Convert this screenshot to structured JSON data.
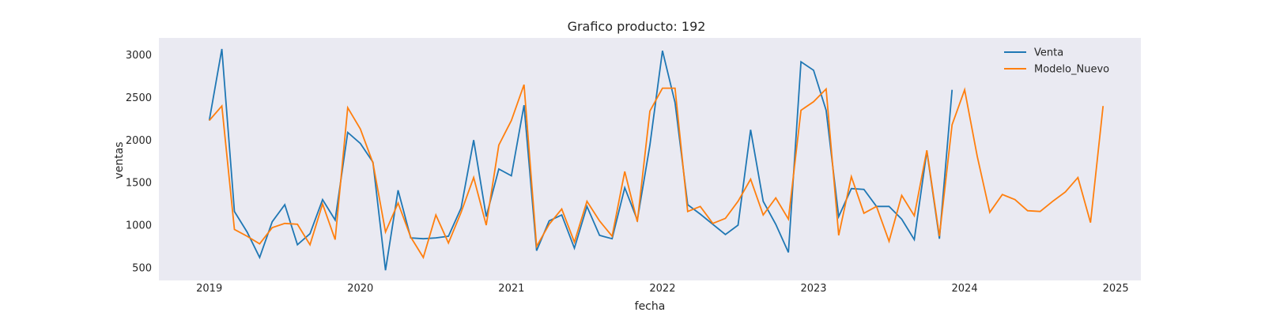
{
  "chart_data": {
    "type": "line",
    "title": "Grafico producto: 192",
    "xlabel": "fecha",
    "ylabel": "ventas",
    "x_ticks": [
      "2019",
      "2020",
      "2021",
      "2022",
      "2023",
      "2024",
      "2025"
    ],
    "y_ticks": [
      500,
      1000,
      1500,
      2000,
      2500,
      3000
    ],
    "xlim": [
      "2018-09",
      "2025-03"
    ],
    "ylim": [
      350,
      3200
    ],
    "grid": false,
    "background": "#eaeaf2",
    "legend_position": "top-right",
    "series": [
      {
        "name": "Venta",
        "color": "#1f77b4",
        "x": [
          "2019-01",
          "2019-02",
          "2019-03",
          "2019-04",
          "2019-05",
          "2019-06",
          "2019-07",
          "2019-08",
          "2019-09",
          "2019-10",
          "2019-11",
          "2019-12",
          "2020-01",
          "2020-02",
          "2020-03",
          "2020-04",
          "2020-05",
          "2020-06",
          "2020-07",
          "2020-08",
          "2020-09",
          "2020-10",
          "2020-11",
          "2020-12",
          "2021-01",
          "2021-02",
          "2021-03",
          "2021-04",
          "2021-05",
          "2021-06",
          "2021-07",
          "2021-08",
          "2021-09",
          "2021-10",
          "2021-11",
          "2021-12",
          "2022-01",
          "2022-02",
          "2022-03",
          "2022-04",
          "2022-05",
          "2022-06",
          "2022-07",
          "2022-08",
          "2022-09",
          "2022-10",
          "2022-11",
          "2022-12",
          "2023-01",
          "2023-02",
          "2023-03",
          "2023-04",
          "2023-05",
          "2023-06",
          "2023-07",
          "2023-08",
          "2023-09",
          "2023-10",
          "2023-11",
          "2023-12"
        ],
        "values": [
          2230,
          3070,
          1160,
          920,
          620,
          1040,
          1240,
          770,
          900,
          1300,
          1060,
          2090,
          1960,
          1740,
          470,
          1410,
          850,
          840,
          850,
          870,
          1200,
          2000,
          1100,
          1660,
          1580,
          2410,
          700,
          1050,
          1120,
          730,
          1220,
          880,
          840,
          1440,
          1060,
          1940,
          3050,
          2440,
          1240,
          1130,
          1010,
          890,
          1000,
          2120,
          1280,
          1010,
          680,
          2920,
          2820,
          2350,
          1100,
          1430,
          1420,
          1220,
          1220,
          1070,
          830,
          1870,
          840,
          2590
        ]
      },
      {
        "name": "Modelo_Nuevo",
        "color": "#ff7f0e",
        "x": [
          "2019-01",
          "2019-02",
          "2019-03",
          "2019-04",
          "2019-05",
          "2019-06",
          "2019-07",
          "2019-08",
          "2019-09",
          "2019-10",
          "2019-11",
          "2019-12",
          "2020-01",
          "2020-02",
          "2020-03",
          "2020-04",
          "2020-05",
          "2020-06",
          "2020-07",
          "2020-08",
          "2020-09",
          "2020-10",
          "2020-11",
          "2020-12",
          "2021-01",
          "2021-02",
          "2021-03",
          "2021-04",
          "2021-05",
          "2021-06",
          "2021-07",
          "2021-08",
          "2021-09",
          "2021-10",
          "2021-11",
          "2021-12",
          "2022-01",
          "2022-02",
          "2022-03",
          "2022-04",
          "2022-05",
          "2022-06",
          "2022-07",
          "2022-08",
          "2022-09",
          "2022-10",
          "2022-11",
          "2022-12",
          "2023-01",
          "2023-02",
          "2023-03",
          "2023-04",
          "2023-05",
          "2023-06",
          "2023-07",
          "2023-08",
          "2023-09",
          "2023-10",
          "2023-11",
          "2023-12",
          "2024-01",
          "2024-02",
          "2024-03",
          "2024-04",
          "2024-05",
          "2024-06",
          "2024-07",
          "2024-08",
          "2024-09",
          "2024-10",
          "2024-11",
          "2024-12"
        ],
        "values": [
          2230,
          2400,
          950,
          870,
          780,
          970,
          1020,
          1010,
          770,
          1250,
          830,
          2380,
          2130,
          1730,
          920,
          1260,
          860,
          620,
          1120,
          790,
          1150,
          1560,
          1000,
          1940,
          2230,
          2650,
          750,
          1010,
          1190,
          800,
          1280,
          1050,
          870,
          1630,
          1040,
          2340,
          2610,
          2610,
          1160,
          1220,
          1020,
          1080,
          1280,
          1540,
          1120,
          1320,
          1070,
          2350,
          2450,
          2600,
          880,
          1570,
          1140,
          1220,
          810,
          1350,
          1110,
          1880,
          870,
          2180,
          2590,
          1810,
          1150,
          1360,
          1300,
          1170,
          1160,
          1280,
          1390,
          1560,
          1030,
          2400
        ]
      }
    ]
  }
}
